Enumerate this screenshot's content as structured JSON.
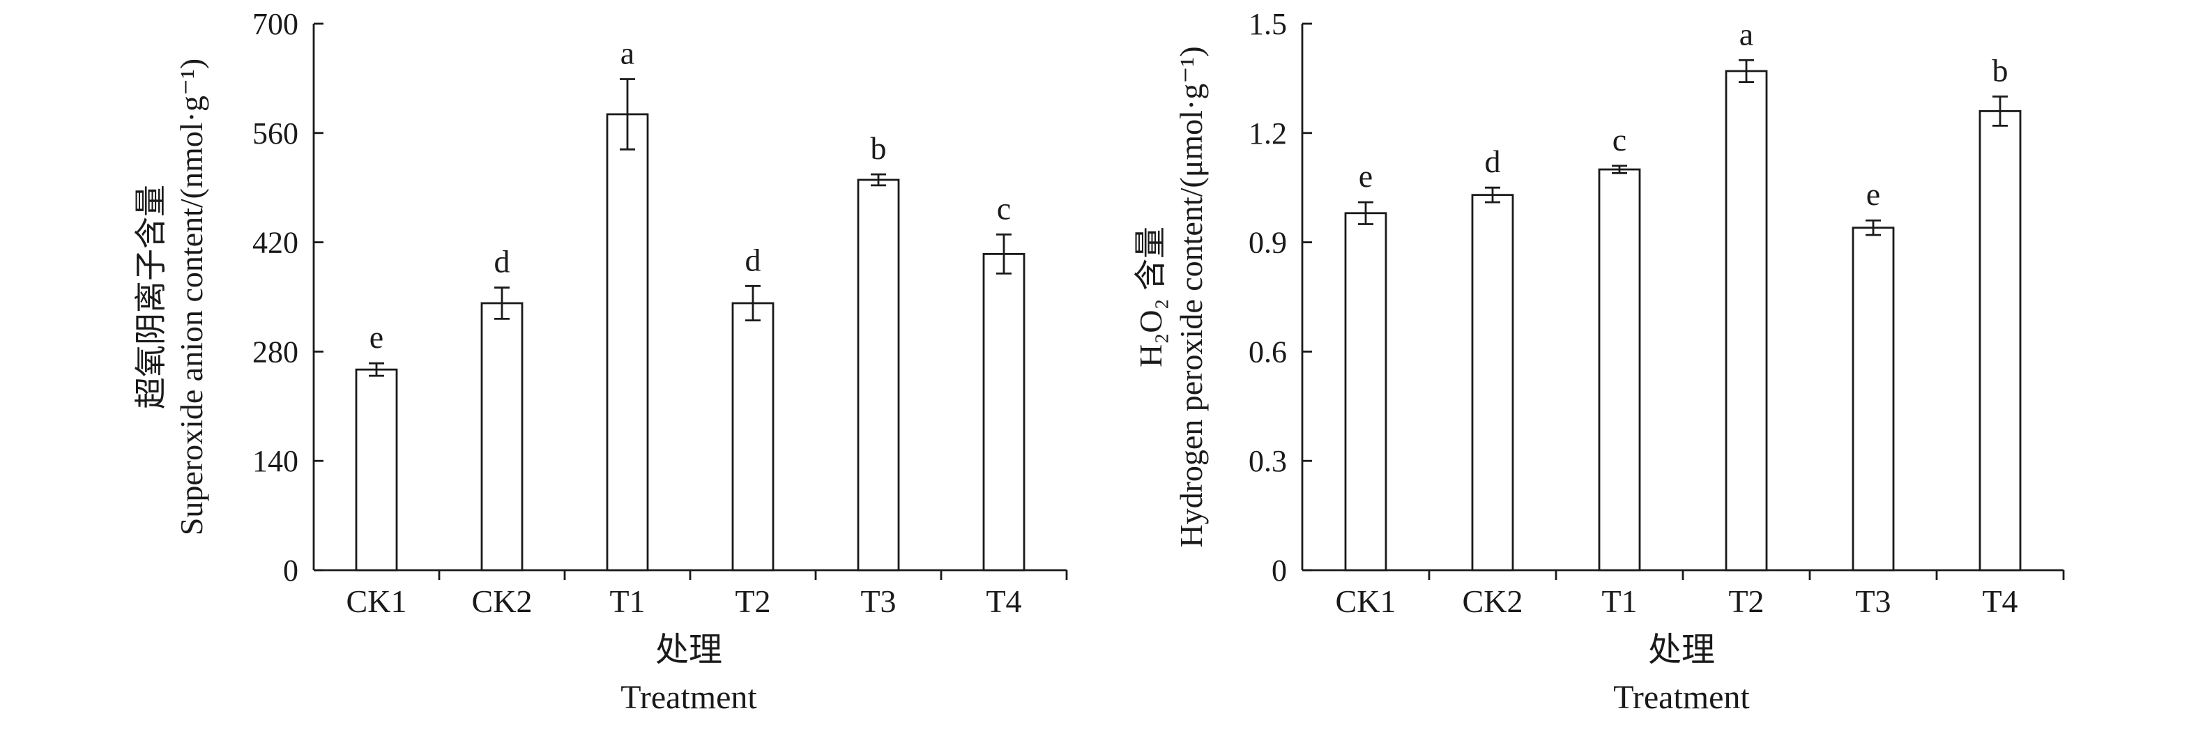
{
  "chart_data": [
    {
      "type": "bar",
      "categories": [
        "CK1",
        "CK2",
        "T1",
        "T2",
        "T3",
        "T4"
      ],
      "values": [
        257,
        342,
        584,
        342,
        500,
        405
      ],
      "errors": [
        8,
        20,
        45,
        22,
        7,
        25
      ],
      "significance": [
        "e",
        "d",
        "a",
        "d",
        "b",
        "c"
      ],
      "ylabel_cn": "超氧阴离子含量",
      "ylabel_en": "Superoxide anion content/(nmol·g⁻¹)",
      "xlabel_cn": "处理",
      "xlabel_en": "Treatment",
      "ylim": [
        0,
        700
      ],
      "yticks": [
        "0",
        "140",
        "280",
        "420",
        "560",
        "700"
      ],
      "grid": false,
      "bar_fill": "#ffffff",
      "bar_stroke": "#1a1a1a"
    },
    {
      "type": "bar",
      "categories": [
        "CK1",
        "CK2",
        "T1",
        "T2",
        "T3",
        "T4"
      ],
      "values": [
        0.98,
        1.03,
        1.1,
        1.37,
        0.94,
        1.26
      ],
      "errors": [
        0.03,
        0.02,
        0.01,
        0.03,
        0.02,
        0.04
      ],
      "significance": [
        "e",
        "d",
        "c",
        "a",
        "e",
        "b"
      ],
      "ylabel_cn": "H₂O₂ 含量",
      "ylabel_en": "Hydrogen peroxide content/(μmol·g⁻¹)",
      "xlabel_cn": "处理",
      "xlabel_en": "Treatment",
      "ylim": [
        0,
        1.5
      ],
      "yticks": [
        "0",
        "0.3",
        "0.6",
        "0.9",
        "1.2",
        "1.5"
      ],
      "grid": false,
      "bar_fill": "#ffffff",
      "bar_stroke": "#1a1a1a"
    }
  ]
}
